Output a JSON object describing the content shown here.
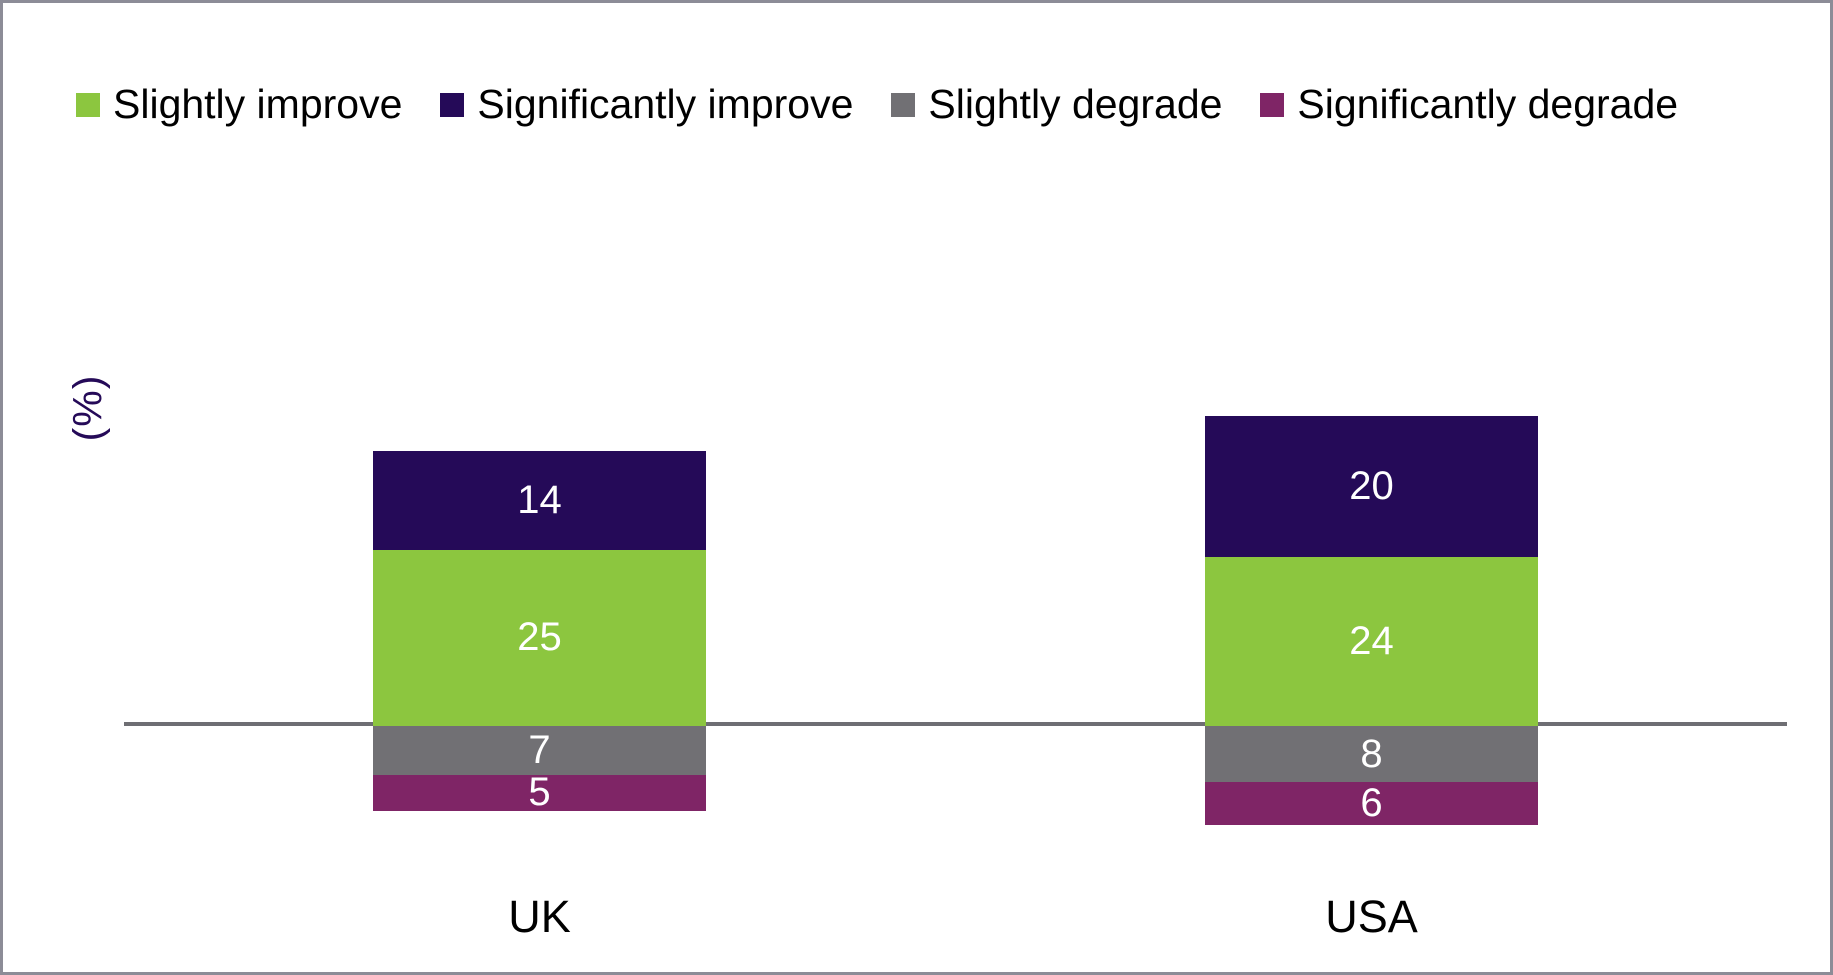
{
  "chart_data": {
    "type": "bar",
    "subtype": "diverging-stacked-column",
    "title": "",
    "ylabel": "(%)",
    "xlabel": "",
    "categories": [
      "UK",
      "USA"
    ],
    "series": [
      {
        "name": "Slightly improve",
        "color": "#8CC63F",
        "direction": "positive",
        "values": [
          25,
          24
        ]
      },
      {
        "name": "Significantly improve",
        "color": "#250A58",
        "direction": "positive",
        "values": [
          14,
          20
        ]
      },
      {
        "name": "Slightly degrade",
        "color": "#717074",
        "direction": "negative",
        "values": [
          7,
          8
        ]
      },
      {
        "name": "Significantly degrade",
        "color": "#7F2566",
        "direction": "negative",
        "values": [
          5,
          6
        ]
      }
    ],
    "legend_position": "top",
    "grid": false,
    "axis_line_color": "#6E6E73",
    "value_label_color": "#FFFFFF",
    "y_axis_label_color": "#250A58",
    "category_label_color": "#000000"
  }
}
